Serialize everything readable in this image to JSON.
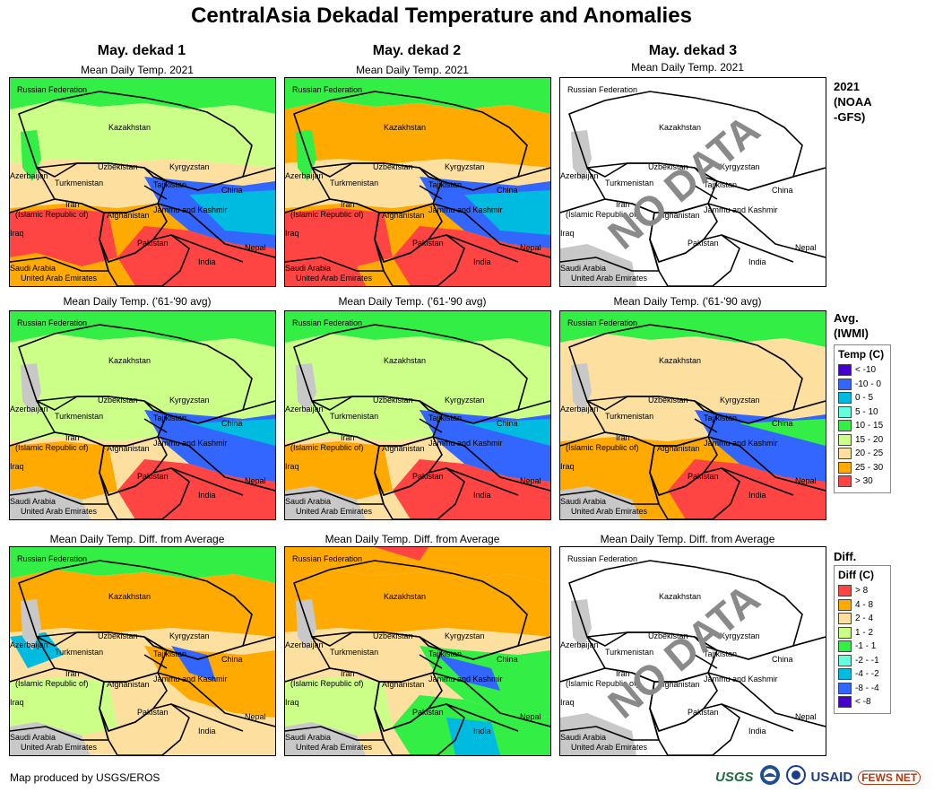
{
  "title": "CentralAsia Dekadal Temperature and Anomalies",
  "columns": [
    "May. dekad 1",
    "May. dekad 2",
    "May. dekad 3"
  ],
  "rows": [
    {
      "subtitle": "Mean Daily Temp. 2021",
      "label": "2021\n(NOAA\n-GFS)"
    },
    {
      "subtitle": "Mean Daily Temp. ('61-'90 avg)",
      "label": "Avg.\n(IWMI)"
    },
    {
      "subtitle": "Mean Daily Temp. Diff. from Average",
      "label": "Diff."
    }
  ],
  "no_data_text": "NO DATA",
  "map_labels": {
    "russia": "Russian Federation",
    "kazakhstan": "Kazakhstan",
    "uzbekistan": "Uzbekistan",
    "kyrgyzstan": "Kyrgyzstan",
    "azerbaijan": "Azerbaijan",
    "turkmenistan": "Turkmenistan",
    "tajikistan": "Tajikistan",
    "china": "China",
    "iran1": "Iran",
    "iran2": "(Islamic Republic of)",
    "afghanistan": "Afghanistan",
    "jammu": "Jammu and Kashmir",
    "iraq": "Iraq",
    "pakistan": "Pakistan",
    "nepal": "Nepal",
    "india": "India",
    "saudi": "Saudi Arabia",
    "uae": "United Arab Emirates"
  },
  "legend_temp": {
    "title": "Temp (C)",
    "items": [
      {
        "label": "< -10",
        "color": "#4400cc"
      },
      {
        "label": "-10 - 0",
        "color": "#3366ff"
      },
      {
        "label": "0 - 5",
        "color": "#00bbe0"
      },
      {
        "label": "5 - 10",
        "color": "#66ffdd"
      },
      {
        "label": "10 - 15",
        "color": "#33ee44"
      },
      {
        "label": "15 - 20",
        "color": "#ccff88"
      },
      {
        "label": "20 - 25",
        "color": "#fde0a0"
      },
      {
        "label": "25 - 30",
        "color": "#ffaa00"
      },
      {
        "label": "> 30",
        "color": "#ff4444"
      }
    ]
  },
  "legend_diff": {
    "title": "Diff (C)",
    "items": [
      {
        "label": "> 8",
        "color": "#ff4444"
      },
      {
        "label": "4 - 8",
        "color": "#ffaa00"
      },
      {
        "label": "2 - 4",
        "color": "#fde0a0"
      },
      {
        "label": "1 - 2",
        "color": "#ccff88"
      },
      {
        "label": "-1 - 1",
        "color": "#33ee44"
      },
      {
        "label": "-2 - -1",
        "color": "#66ffdd"
      },
      {
        "label": "-4 - -2",
        "color": "#00bbe0"
      },
      {
        "label": "-8 - -4",
        "color": "#3366ff"
      },
      {
        "label": "< -8",
        "color": "#4400cc"
      }
    ]
  },
  "credit": "Map produced by USGS/EROS",
  "logos": {
    "usgs": "USGS",
    "usaid": "USAID",
    "fews": "FEWS NET"
  }
}
